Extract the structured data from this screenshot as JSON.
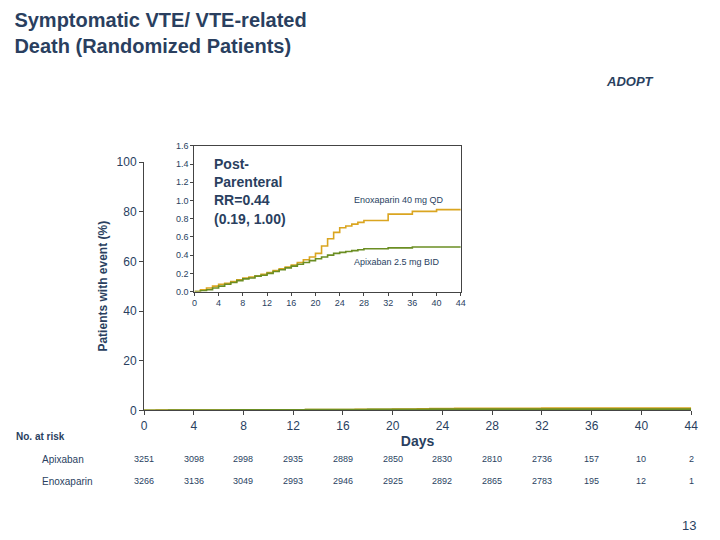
{
  "chart_data": [
    {
      "type": "step",
      "title": "Symptomatic VTE/ VTE-related\nDeath (Randomized Patients)",
      "x_label": "Days",
      "y_label": "Patients with event (%)",
      "annotations": [
        "Post-\nParenteral\nRR=0.44\n(0.19, 1.00)",
        "ADOPT",
        "13"
      ],
      "xlim": [
        0,
        44
      ],
      "ylim": [
        0,
        100
      ],
      "xticks": [
        0,
        4,
        8,
        12,
        16,
        20,
        24,
        28,
        32,
        36,
        40,
        44
      ],
      "yticks": [
        0,
        20,
        40,
        60,
        80,
        100
      ],
      "grid": false,
      "series": [
        {
          "name": "Enoxaparin 40 mg QD",
          "color": "#DAA520",
          "x": [
            0,
            1,
            2,
            3,
            4,
            5,
            6,
            7,
            8,
            9,
            10,
            11,
            12,
            13,
            14,
            15,
            16,
            17,
            18,
            19,
            20,
            21,
            22,
            23,
            24,
            25,
            26,
            27,
            28,
            32,
            36,
            40,
            44
          ],
          "values": [
            0.0,
            0.02,
            0.04,
            0.06,
            0.08,
            0.09,
            0.11,
            0.13,
            0.15,
            0.16,
            0.17,
            0.19,
            0.21,
            0.23,
            0.25,
            0.27,
            0.29,
            0.32,
            0.35,
            0.38,
            0.42,
            0.5,
            0.58,
            0.65,
            0.7,
            0.72,
            0.74,
            0.76,
            0.78,
            0.85,
            0.88,
            0.9,
            0.9
          ]
        },
        {
          "name": "Apixaban 2.5 mg BID",
          "color": "#6B8E23",
          "x": [
            0,
            1,
            2,
            3,
            4,
            5,
            6,
            7,
            8,
            9,
            10,
            11,
            12,
            13,
            14,
            15,
            16,
            17,
            18,
            19,
            20,
            21,
            22,
            23,
            24,
            25,
            26,
            27,
            28,
            32,
            36,
            40,
            44
          ],
          "values": [
            0.0,
            0.01,
            0.02,
            0.04,
            0.06,
            0.08,
            0.1,
            0.12,
            0.14,
            0.15,
            0.17,
            0.18,
            0.2,
            0.22,
            0.24,
            0.26,
            0.28,
            0.3,
            0.32,
            0.34,
            0.36,
            0.38,
            0.4,
            0.42,
            0.43,
            0.44,
            0.45,
            0.46,
            0.47,
            0.48,
            0.49,
            0.49,
            0.49
          ]
        }
      ],
      "at_risk": {
        "title": "No. at risk",
        "x": [
          0,
          4,
          8,
          12,
          16,
          20,
          24,
          28,
          32,
          36,
          40,
          44
        ],
        "rows": [
          {
            "name": "Apixaban",
            "values": [
              3251,
              3098,
              2998,
              2935,
              2889,
              2850,
              2830,
              2810,
              2736,
              157,
              10,
              2
            ]
          },
          {
            "name": "Enoxaparin",
            "values": [
              3266,
              3136,
              3049,
              2993,
              2946,
              2925,
              2892,
              2865,
              2783,
              195,
              12,
              1
            ]
          }
        ]
      }
    },
    {
      "type": "step",
      "xlim": [
        0,
        44
      ],
      "ylim": [
        0,
        1.6
      ],
      "xticks": [
        0,
        4,
        8,
        12,
        16,
        20,
        24,
        28,
        32,
        36,
        40,
        44
      ],
      "yticks": [
        {
          "value": 0,
          "label": "0.0"
        },
        0.2,
        0.4,
        0.6,
        0.8,
        {
          "value": 1,
          "label": "1.0"
        },
        1.2,
        1.4,
        1.6
      ],
      "grid": false,
      "series": [
        {
          "name": "Enoxaparin 40 mg QD",
          "color": "#DAA520",
          "x": [
            0,
            1,
            2,
            3,
            4,
            5,
            6,
            7,
            8,
            9,
            10,
            11,
            12,
            13,
            14,
            15,
            16,
            17,
            18,
            19,
            20,
            21,
            22,
            23,
            24,
            25,
            26,
            27,
            28,
            32,
            36,
            40,
            44
          ],
          "values": [
            0.0,
            0.02,
            0.04,
            0.06,
            0.08,
            0.09,
            0.11,
            0.13,
            0.15,
            0.16,
            0.17,
            0.19,
            0.21,
            0.23,
            0.25,
            0.27,
            0.29,
            0.32,
            0.35,
            0.38,
            0.42,
            0.5,
            0.58,
            0.65,
            0.7,
            0.72,
            0.74,
            0.76,
            0.78,
            0.85,
            0.88,
            0.9,
            0.9
          ]
        },
        {
          "name": "Apixaban 2.5 mg BID",
          "color": "#6B8E23",
          "x": [
            0,
            1,
            2,
            3,
            4,
            5,
            6,
            7,
            8,
            9,
            10,
            11,
            12,
            13,
            14,
            15,
            16,
            17,
            18,
            19,
            20,
            21,
            22,
            23,
            24,
            25,
            26,
            27,
            28,
            32,
            36,
            40,
            44
          ],
          "values": [
            0.0,
            0.01,
            0.02,
            0.04,
            0.06,
            0.08,
            0.1,
            0.12,
            0.14,
            0.15,
            0.17,
            0.18,
            0.2,
            0.22,
            0.24,
            0.26,
            0.28,
            0.3,
            0.32,
            0.34,
            0.36,
            0.38,
            0.4,
            0.42,
            0.43,
            0.44,
            0.45,
            0.46,
            0.47,
            0.48,
            0.49,
            0.49,
            0.49
          ]
        }
      ]
    }
  ]
}
